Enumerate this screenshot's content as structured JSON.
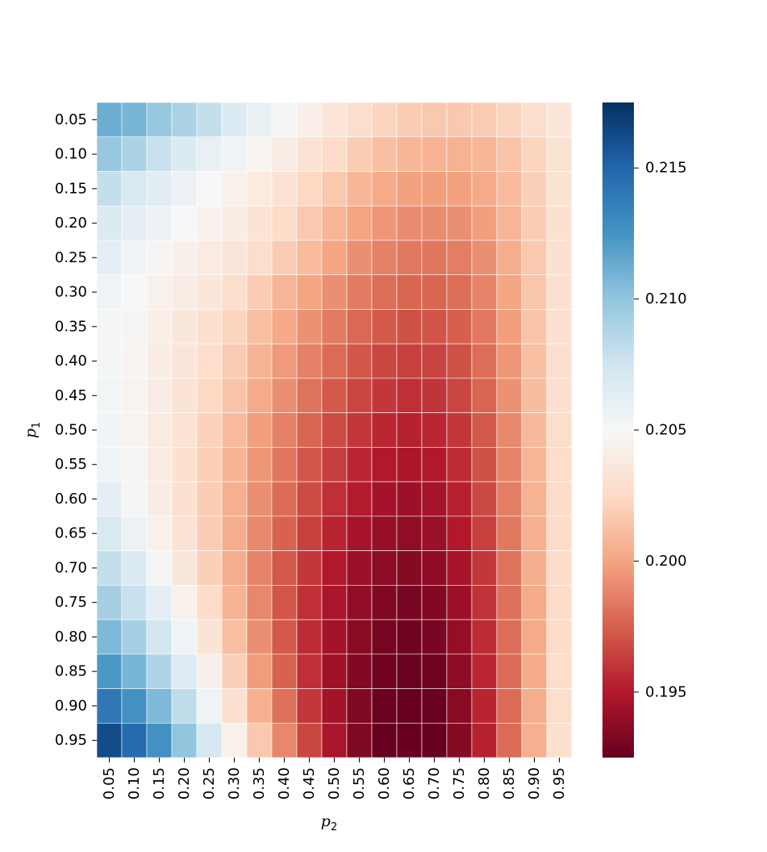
{
  "chart_data": {
    "type": "heatmap",
    "title": "",
    "xlabel": "p",
    "xlabel_sub": "2",
    "ylabel": "p",
    "ylabel_sub": "1",
    "x_categories": [
      "0.05",
      "0.10",
      "0.15",
      "0.20",
      "0.25",
      "0.30",
      "0.35",
      "0.40",
      "0.45",
      "0.50",
      "0.55",
      "0.60",
      "0.65",
      "0.70",
      "0.75",
      "0.80",
      "0.85",
      "0.90",
      "0.95"
    ],
    "y_categories": [
      "0.05",
      "0.10",
      "0.15",
      "0.20",
      "0.25",
      "0.30",
      "0.35",
      "0.40",
      "0.45",
      "0.50",
      "0.55",
      "0.60",
      "0.65",
      "0.70",
      "0.75",
      "0.80",
      "0.85",
      "0.90",
      "0.95"
    ],
    "colormap": "RdBu",
    "vmin": 0.1925,
    "vmax": 0.2175,
    "colorbar_ticks": [
      0.195,
      0.2,
      0.205,
      0.21,
      0.215
    ],
    "colorbar_tick_labels": [
      "0.195",
      "0.200",
      "0.205",
      "0.210",
      "0.215"
    ],
    "values": [
      [
        0.2112,
        0.2108,
        0.2098,
        0.209,
        0.208,
        0.2068,
        0.206,
        0.2052,
        0.2042,
        0.2034,
        0.2028,
        0.2022,
        0.2018,
        0.2016,
        0.2016,
        0.2018,
        0.2022,
        0.2028,
        0.2035
      ],
      [
        0.2098,
        0.209,
        0.2078,
        0.2068,
        0.206,
        0.2055,
        0.2047,
        0.204,
        0.2033,
        0.2026,
        0.2018,
        0.2012,
        0.2008,
        0.2006,
        0.2006,
        0.2008,
        0.2014,
        0.2022,
        0.2032
      ],
      [
        0.208,
        0.207,
        0.2064,
        0.2058,
        0.205,
        0.2044,
        0.2038,
        0.2032,
        0.2024,
        0.2016,
        0.2008,
        0.2003,
        0.1999,
        0.1998,
        0.1999,
        0.2003,
        0.201,
        0.202,
        0.2032
      ],
      [
        0.2068,
        0.2062,
        0.2058,
        0.205,
        0.2045,
        0.204,
        0.2033,
        0.2026,
        0.2016,
        0.2008,
        0.2,
        0.1995,
        0.1991,
        0.1991,
        0.1992,
        0.1998,
        0.2008,
        0.2018,
        0.203
      ],
      [
        0.2062,
        0.2054,
        0.2048,
        0.2043,
        0.2039,
        0.2034,
        0.2028,
        0.2018,
        0.201,
        0.2,
        0.1992,
        0.1987,
        0.1984,
        0.1983,
        0.1986,
        0.1992,
        0.2004,
        0.2016,
        0.203
      ],
      [
        0.2055,
        0.205,
        0.2044,
        0.204,
        0.2035,
        0.2028,
        0.2018,
        0.2008,
        0.2,
        0.1992,
        0.1985,
        0.198,
        0.1977,
        0.1977,
        0.198,
        0.1988,
        0.2001,
        0.2015,
        0.203
      ],
      [
        0.2052,
        0.2048,
        0.2042,
        0.2036,
        0.203,
        0.2022,
        0.2012,
        0.2002,
        0.1993,
        0.1985,
        0.1978,
        0.1973,
        0.197,
        0.1971,
        0.1975,
        0.1984,
        0.1998,
        0.2014,
        0.203
      ],
      [
        0.2052,
        0.2047,
        0.204,
        0.2034,
        0.2027,
        0.2018,
        0.2007,
        0.1996,
        0.1987,
        0.1979,
        0.1972,
        0.1966,
        0.1964,
        0.1965,
        0.197,
        0.198,
        0.1995,
        0.2012,
        0.2029
      ],
      [
        0.2053,
        0.2046,
        0.204,
        0.2033,
        0.2024,
        0.2014,
        0.2003,
        0.1992,
        0.1982,
        0.1973,
        0.1966,
        0.1961,
        0.1958,
        0.196,
        0.1966,
        0.1977,
        0.1993,
        0.2011,
        0.2029
      ],
      [
        0.2054,
        0.2046,
        0.2039,
        0.2031,
        0.2021,
        0.201,
        0.1998,
        0.1987,
        0.1977,
        0.1968,
        0.1961,
        0.1955,
        0.1953,
        0.1955,
        0.1961,
        0.1973,
        0.199,
        0.2009,
        0.2028
      ],
      [
        0.2056,
        0.2048,
        0.2039,
        0.203,
        0.2019,
        0.2007,
        0.1995,
        0.1983,
        0.1972,
        0.1963,
        0.1955,
        0.195,
        0.1948,
        0.195,
        0.1957,
        0.197,
        0.1988,
        0.2008,
        0.2027
      ],
      [
        0.2062,
        0.2052,
        0.204,
        0.203,
        0.2018,
        0.2005,
        0.1992,
        0.1979,
        0.1968,
        0.1958,
        0.1951,
        0.1945,
        0.1943,
        0.1946,
        0.1953,
        0.1967,
        0.1986,
        0.2006,
        0.2026
      ],
      [
        0.207,
        0.2058,
        0.2044,
        0.2032,
        0.2018,
        0.2004,
        0.199,
        0.1976,
        0.1964,
        0.1954,
        0.1946,
        0.1941,
        0.1939,
        0.1942,
        0.195,
        0.1964,
        0.1984,
        0.2005,
        0.2026
      ],
      [
        0.208,
        0.2068,
        0.2052,
        0.2036,
        0.202,
        0.2004,
        0.1988,
        0.1973,
        0.1961,
        0.195,
        0.1942,
        0.1937,
        0.1935,
        0.1938,
        0.1946,
        0.1961,
        0.1982,
        0.2004,
        0.2026
      ],
      [
        0.2092,
        0.2078,
        0.2062,
        0.2044,
        0.2026,
        0.2007,
        0.1989,
        0.1972,
        0.1958,
        0.1947,
        0.1939,
        0.1933,
        0.1931,
        0.1934,
        0.1943,
        0.1959,
        0.1981,
        0.2003,
        0.2026
      ],
      [
        0.2106,
        0.2092,
        0.2074,
        0.2054,
        0.2033,
        0.2012,
        0.1992,
        0.1973,
        0.1957,
        0.1945,
        0.1936,
        0.193,
        0.1928,
        0.1931,
        0.194,
        0.1957,
        0.198,
        0.2003,
        0.2026
      ],
      [
        0.2122,
        0.2108,
        0.2088,
        0.2066,
        0.2043,
        0.202,
        0.1997,
        0.1976,
        0.1958,
        0.1944,
        0.1934,
        0.1928,
        0.1926,
        0.1928,
        0.1938,
        0.1955,
        0.1979,
        0.2003,
        0.2027
      ],
      [
        0.214,
        0.2126,
        0.2106,
        0.2082,
        0.2056,
        0.203,
        0.2005,
        0.1981,
        0.1961,
        0.1945,
        0.1933,
        0.1926,
        0.1924,
        0.1926,
        0.1936,
        0.1954,
        0.1979,
        0.2004,
        0.2028
      ],
      [
        0.2162,
        0.2147,
        0.2126,
        0.21,
        0.2072,
        0.2044,
        0.2016,
        0.1989,
        0.1966,
        0.1947,
        0.1933,
        0.1925,
        0.1922,
        0.1925,
        0.1935,
        0.1953,
        0.1979,
        0.2005,
        0.203
      ]
    ]
  }
}
